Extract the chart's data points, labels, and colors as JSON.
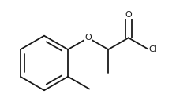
{
  "bg_color": "#ffffff",
  "line_color": "#1a1a1a",
  "line_width": 1.3,
  "font_size": 8.0,
  "figsize": [
    2.23,
    1.34
  ],
  "dpi": 100,
  "xlim": [
    -0.05,
    1.05
  ],
  "ylim": [
    0.0,
    1.0
  ]
}
